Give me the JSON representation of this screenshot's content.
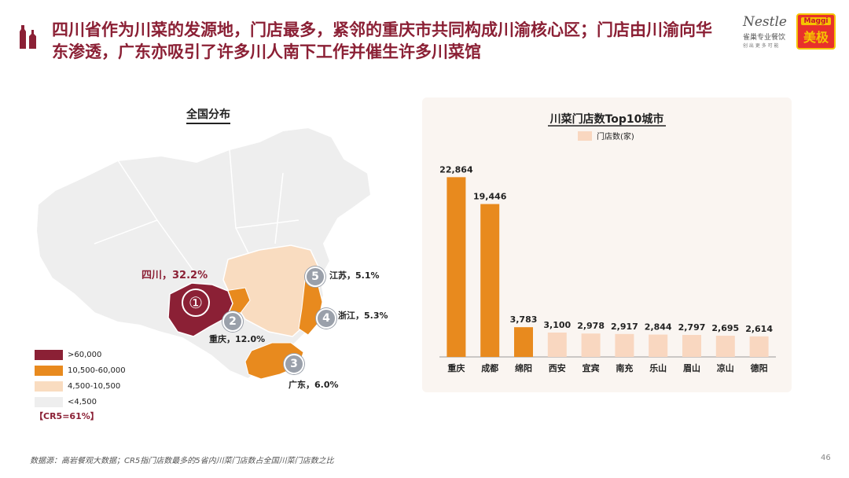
{
  "header": {
    "title": "四川省作为川菜的发源地，门店最多，紧邻的重庆市共同构成川渝核心区；门店由川渝向华东渗透，广东亦吸引了许多川人南下工作并催生许多川菜馆",
    "nestle_brand": "Nestle",
    "nestle_sub": "雀巢专业餐饮",
    "nestle_tagline": "创 出 更 多 可 能",
    "maggi_brand": "Maggi",
    "maggi_cn": "美极"
  },
  "map": {
    "heading": "全国分布",
    "colors": {
      "tier1": "#8b2035",
      "tier2": "#e88a1e",
      "tier3": "#f9dcc0",
      "tier4": "#eeeeee"
    },
    "annotations": [
      {
        "num": "①",
        "label": "四川，32.2%"
      },
      {
        "num": "2",
        "label": "重庆，12.0%"
      },
      {
        "num": "3",
        "label": "广东，6.0%"
      },
      {
        "num": "4",
        "label": "浙江，5.3%"
      },
      {
        "num": "5",
        "label": "江苏，5.1%"
      }
    ],
    "legend": [
      ">60,000",
      "10,500-60,000",
      "4,500-10,500",
      "<4,500"
    ],
    "cr5": "【CR5=61%】"
  },
  "chart_data": {
    "type": "bar",
    "title": "川菜门店数Top10城市",
    "legend": "门店数(家)",
    "categories": [
      "重庆",
      "成都",
      "绵阳",
      "西安",
      "宜宾",
      "南充",
      "乐山",
      "眉山",
      "凉山",
      "德阳"
    ],
    "values": [
      22864,
      19446,
      3783,
      3100,
      2978,
      2917,
      2844,
      2797,
      2695,
      2614
    ],
    "data_labels": [
      "22,864",
      "19,446",
      "3,783",
      "3,100",
      "2,978",
      "2,917",
      "2,844",
      "2,797",
      "2,695",
      "2,614"
    ],
    "ylim": [
      0,
      25000
    ],
    "colors": {
      "highlight": "#e88a1e",
      "normal": "#f9d7c0"
    },
    "highlight_count": 3
  },
  "footer": {
    "source": "数据源：高岩餐观大数据；CR5指门店数最多的5省内川菜门店数占全国川菜门店数之比",
    "page": "46"
  }
}
